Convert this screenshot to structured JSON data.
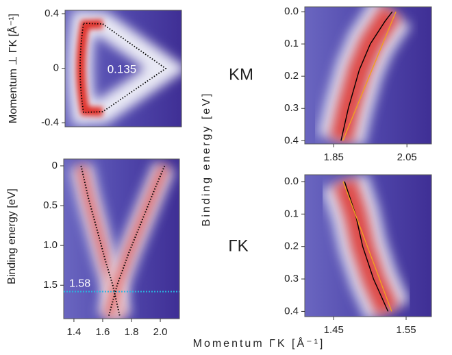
{
  "chart_data": [
    {
      "type": "heatmap",
      "ylabel": "Momentum ⊥ ΓK [Å⁻¹]",
      "annotation": "0.135",
      "ylim": [
        -0.43,
        0.425
      ],
      "yticks": [
        0.4,
        0,
        -0.4
      ]
    },
    {
      "type": "heatmap",
      "label": "KM",
      "ylabel": "Binding energy [eV]",
      "xlim": [
        1.771,
        2.117
      ],
      "xticks": [
        1.85,
        2.05
      ],
      "ylim": [
        0.41,
        -0.015
      ],
      "yticks": [
        {
          "value": 0,
          "label": "0.0"
        },
        0.1,
        0.2,
        0.3,
        0.4
      ],
      "series": [
        {
          "color": "#000000",
          "style": "solid",
          "x": [
            1.87,
            1.89,
            1.92,
            1.95,
            1.99,
            2.01
          ],
          "values": [
            0.4,
            0.3,
            0.18,
            0.1,
            0.03,
            0
          ]
        },
        {
          "color": "#f0a020",
          "style": "solid",
          "x": [
            1.875,
            2.02
          ],
          "values": [
            0.4,
            0
          ]
        }
      ]
    },
    {
      "type": "heatmap",
      "ylabel": "Binding energy [eV]",
      "xlabel": "Momentum ΓK [Å⁻¹]",
      "xlim": [
        1.329,
        2.133
      ],
      "xticks": [
        1.4,
        1.6,
        1.8,
        {
          "value": 2,
          "label": "2.0"
        }
      ],
      "ylim": [
        1.92,
        -0.086
      ],
      "yticks": [
        0,
        0.5,
        {
          "value": 1,
          "label": "1.0"
        },
        1.5
      ],
      "hline": 1.58,
      "hline_color": "#29b6e0",
      "series": [
        {
          "color": "#000000",
          "style": "dotted",
          "x": [
            1.45,
            1.5,
            1.56,
            1.62,
            1.67,
            1.72
          ],
          "values": [
            0,
            0.4,
            0.8,
            1.2,
            1.5,
            1.9
          ]
        },
        {
          "color": "#000000",
          "style": "dotted",
          "x": [
            2.03,
            1.96,
            1.87,
            1.78,
            1.7,
            1.64
          ],
          "values": [
            0,
            0.3,
            0.7,
            1.1,
            1.5,
            1.9
          ]
        }
      ]
    },
    {
      "type": "heatmap",
      "label": "ΓK",
      "xlim": [
        1.41,
        1.585
      ],
      "xticks": [
        1.45,
        1.55
      ],
      "ylim": [
        0.416,
        -0.021
      ],
      "yticks": [
        {
          "value": 0,
          "label": "0.0"
        },
        0.1,
        0.2,
        0.3,
        0.4
      ],
      "series": [
        {
          "color": "#000000",
          "style": "solid",
          "x": [
            1.465,
            1.48,
            1.49,
            1.505,
            1.525
          ],
          "values": [
            0,
            0.1,
            0.2,
            0.3,
            0.4
          ]
        },
        {
          "color": "#f0a020",
          "style": "solid",
          "x": [
            1.463,
            1.53
          ],
          "values": [
            0,
            0.4
          ]
        }
      ]
    }
  ]
}
